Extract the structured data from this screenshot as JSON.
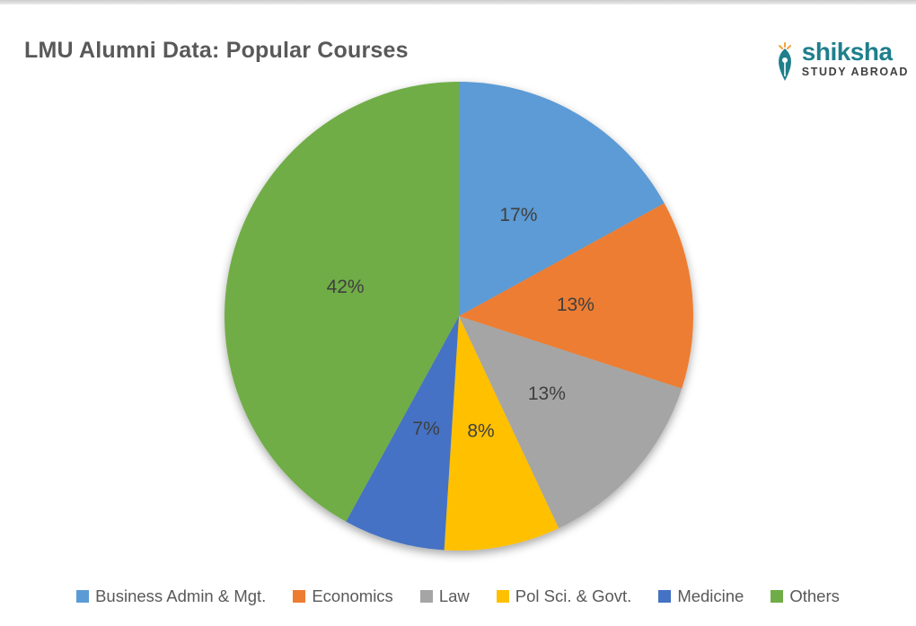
{
  "page": {
    "title": "LMU Alumni Data: Popular Courses"
  },
  "logo": {
    "brand": "shiksha",
    "tagline": "STUDY ABROAD",
    "brand_color": "#1F7F8C",
    "accent_color": "#F2A33C",
    "icon": "pen-nib-icon"
  },
  "chart_data": {
    "type": "pie",
    "title": "LMU Alumni Data: Popular Courses",
    "start_angle_deg": 0,
    "direction": "clockwise",
    "legend_position": "bottom",
    "labels_position": "inside",
    "label_format": "percent",
    "label_color": "#3F3F3F",
    "segments": [
      {
        "label": "Business Admin & Mgt.",
        "value": 17,
        "display_label": "17%",
        "color": "#5B9BD5"
      },
      {
        "label": "Economics",
        "value": 13,
        "display_label": "13%",
        "color": "#ED7D31"
      },
      {
        "label": "Law",
        "value": 13,
        "display_label": "13%",
        "color": "#A5A5A5"
      },
      {
        "label": "Pol Sci. & Govt.",
        "value": 8,
        "display_label": "8%",
        "color": "#FFC000"
      },
      {
        "label": "Medicine",
        "value": 7,
        "display_label": "7%",
        "color": "#4472C4"
      },
      {
        "label": "Others",
        "value": 42,
        "display_label": "42%",
        "color": "#70AD47"
      }
    ]
  }
}
